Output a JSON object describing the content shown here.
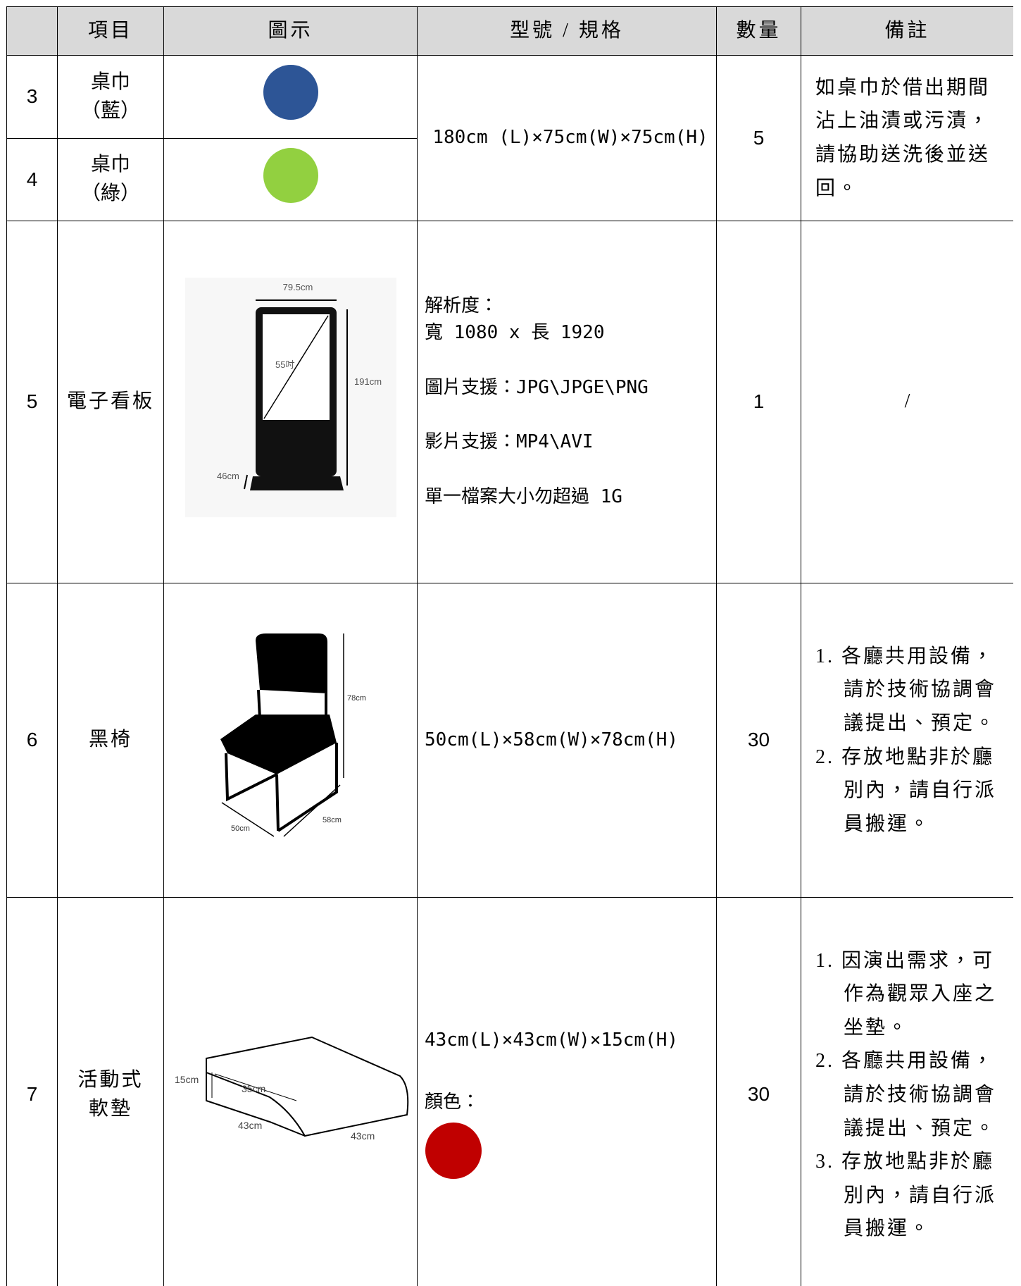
{
  "header": [
    "項目",
    "圖示",
    "型號 / 規格",
    "數量",
    "備註"
  ],
  "rows": [
    {
      "no": "3",
      "item": [
        "桌巾",
        "（藍）"
      ],
      "color": "#2d5596"
    },
    {
      "no": "4",
      "item": [
        "桌巾",
        "（綠）"
      ],
      "color": "#92d040"
    },
    {
      "no": "5",
      "item": [
        "電子看板"
      ],
      "figure": [
        "79.5cm",
        "55吋",
        "191cm",
        "46cm"
      ],
      "spec": [
        "解析度：",
        "寬 1080 x 長 1920",
        "圖片支援：JPG\\JPGE\\PNG",
        "影片支援：MP4\\AVI",
        "單一檔案大小勿超過 1G"
      ],
      "qty": "1",
      "notes": [
        "/"
      ]
    },
    {
      "no": "6",
      "item": [
        "黑椅"
      ],
      "figure": [
        "78cm",
        "50cm",
        "58cm"
      ],
      "spec": [
        "50cm(L)×58cm(W)×78cm(H)"
      ],
      "qty": "30",
      "notes": [
        "1. 各廳共用設備，請於技術協調會議提出、預定。",
        "2. 存放地點非於廳別內，請自行派員搬運。"
      ]
    },
    {
      "no": "7",
      "item": [
        "活動式",
        "軟墊"
      ],
      "figure": [
        "15cm",
        "35cm",
        "43cm",
        "43cm"
      ],
      "spec": [
        "43cm(L)×43cm(W)×15cm(H)",
        "顏色："
      ],
      "color": "#c00000",
      "qty": "30",
      "notes": [
        "1. 因演出需求，可作為觀眾入座之坐墊。",
        "2. 各廳共用設備，請於技術協調會議提出、預定。",
        "3. 存放地點非於廳別內，請自行派員搬運。"
      ]
    }
  ],
  "group_3_4": {
    "spec": "180cm (L)×75cm(W)×75cm(H)",
    "qty": "5",
    "notes": "如桌巾於借出期間沾上油漬或污漬，請協助送洗後並送回。"
  }
}
